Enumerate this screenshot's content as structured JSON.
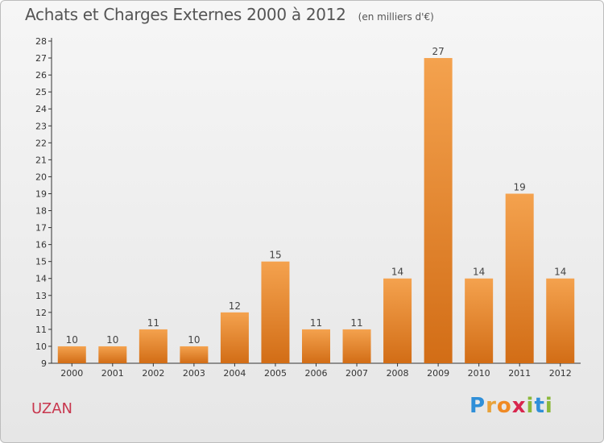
{
  "title": "Achats et Charges Externes 2000 à 2012",
  "unit": "(en milliers d'€)",
  "commune": "UZAN",
  "logo": {
    "text": "Proxiti",
    "p": "P",
    "r": "r",
    "o": "o",
    "x": "x",
    "i": "i",
    "t": "t",
    "i2": "i"
  },
  "colors": {
    "bar_light": "#f4a24e",
    "bar_dark": "#d26d16",
    "title": "#555555",
    "commune": "#c8374e"
  },
  "chart_data": {
    "type": "bar",
    "categories": [
      "2000",
      "2001",
      "2002",
      "2003",
      "2004",
      "2005",
      "2006",
      "2007",
      "2008",
      "2009",
      "2010",
      "2011",
      "2012"
    ],
    "values": [
      10,
      10,
      11,
      10,
      12,
      15,
      11,
      11,
      14,
      27,
      14,
      19,
      14
    ],
    "ylim": [
      9,
      28
    ],
    "yticks": [
      9,
      10,
      11,
      12,
      13,
      14,
      15,
      16,
      17,
      18,
      19,
      20,
      21,
      22,
      23,
      24,
      25,
      26,
      27,
      28
    ],
    "grid": false,
    "data_labels": true
  }
}
